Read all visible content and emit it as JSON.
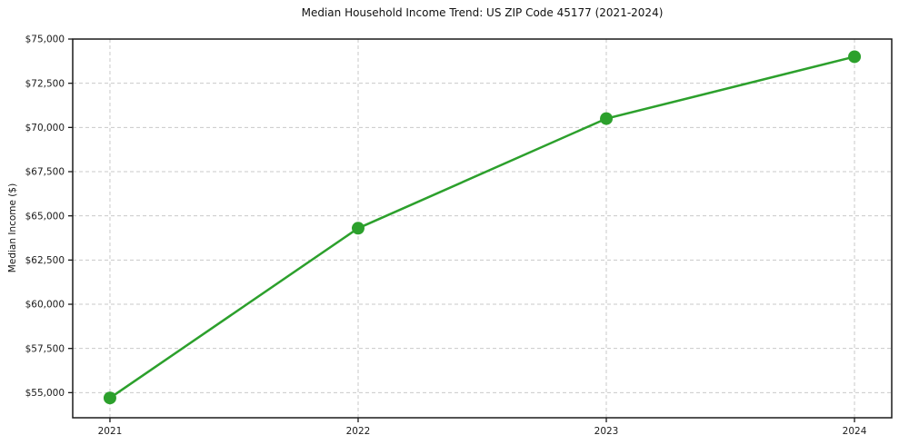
{
  "chart_data": {
    "type": "line",
    "title": "Median Household Income Trend: US ZIP Code 45177 (2021-2024)",
    "xlabel": "",
    "ylabel": "Median Income ($)",
    "x": [
      2021,
      2022,
      2023,
      2024
    ],
    "series": [
      {
        "name": "Median Household Income",
        "values": [
          54700,
          64300,
          70500,
          74000
        ]
      }
    ],
    "xlim": [
      2020.85,
      2024.15
    ],
    "ylim": [
      53580,
      75000
    ],
    "xticks": [
      2021,
      2022,
      2023,
      2024
    ],
    "xtick_labels": [
      "2021",
      "2022",
      "2023",
      "2024"
    ],
    "yticks": [
      55000,
      57500,
      60000,
      62500,
      65000,
      67500,
      70000,
      72500,
      75000
    ],
    "ytick_labels": [
      "$55,000",
      "$57,500",
      "$60,000",
      "$62,500",
      "$65,000",
      "$67,500",
      "$70,000",
      "$72,500",
      "$75,000"
    ],
    "grid": true,
    "legend": "none",
    "line_color": "#2ca02c",
    "marker": "circle",
    "marker_color": "#2ca02c",
    "grid_color": "#c9c9c9",
    "spine_color": "#1a1a1a",
    "background_color": "#ffffff"
  }
}
